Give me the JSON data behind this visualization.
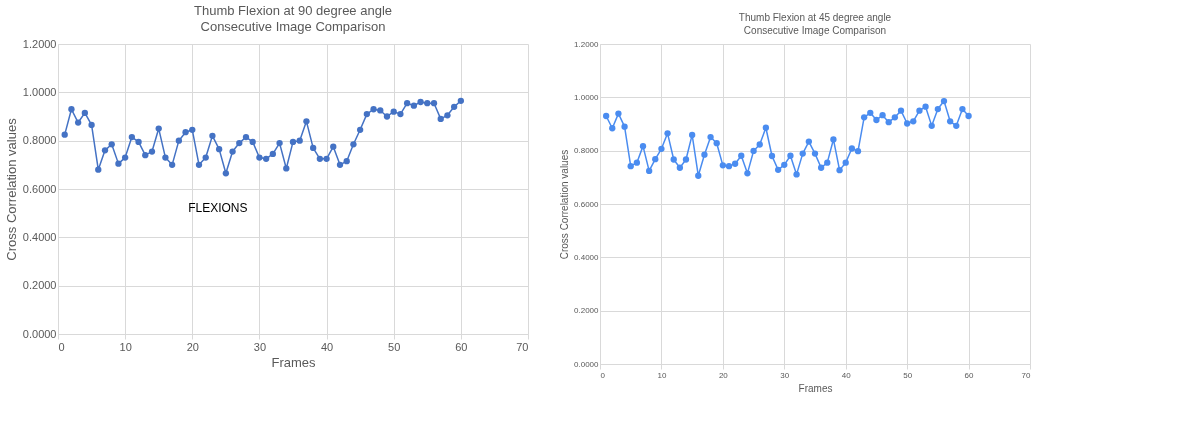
{
  "chart_data": [
    {
      "type": "line",
      "title": "Thumb Flexion at 90 degree angle",
      "subtitle": "Consecutive Image Comparison",
      "xlabel": "Frames",
      "ylabel": "Cross Correlation values",
      "x": [
        1,
        2,
        3,
        4,
        5,
        6,
        7,
        8,
        9,
        10,
        11,
        12,
        13,
        14,
        15,
        16,
        17,
        18,
        19,
        20,
        21,
        22,
        23,
        24,
        25,
        26,
        27,
        28,
        29,
        30,
        31,
        32,
        33,
        34,
        35,
        36,
        37,
        38,
        39,
        40,
        41,
        42,
        43,
        44,
        45,
        46,
        47,
        48,
        49,
        50,
        51,
        52,
        53,
        54,
        55,
        56,
        57,
        58,
        59,
        60
      ],
      "series": [
        {
          "color": "#4472c4",
          "values": [
            0.825,
            0.93,
            0.875,
            0.915,
            0.865,
            0.68,
            0.76,
            0.785,
            0.705,
            0.73,
            0.815,
            0.795,
            0.74,
            0.755,
            0.85,
            0.73,
            0.7,
            0.8,
            0.835,
            0.845,
            0.7,
            0.73,
            0.82,
            0.765,
            0.665,
            0.755,
            0.79,
            0.815,
            0.795,
            0.73,
            0.725,
            0.745,
            0.79,
            0.685,
            0.795,
            0.8,
            0.88,
            0.77,
            0.725,
            0.725,
            0.775,
            0.7,
            0.715,
            0.785,
            0.845,
            0.91,
            0.93,
            0.925,
            0.9,
            0.92,
            0.91,
            0.955,
            0.945,
            0.96,
            0.955,
            0.955,
            0.89,
            0.905,
            0.94,
            0.965
          ]
        }
      ],
      "annotations": [
        "FLEXIONS"
      ],
      "xlim": [
        0,
        70
      ],
      "xticks": [
        0,
        10,
        20,
        30,
        40,
        50,
        60,
        70
      ],
      "ylim": [
        0,
        1.2
      ],
      "yticks": [
        {
          "value": 0,
          "label": "0.0000"
        },
        {
          "value": 0.2,
          "label": "0.2000"
        },
        {
          "value": 0.4,
          "label": "0.4000"
        },
        {
          "value": 0.6,
          "label": "0.6000"
        },
        {
          "value": 0.8,
          "label": "0.8000"
        },
        {
          "value": 1.0,
          "label": "1.0000"
        },
        {
          "value": 1.2,
          "label": "1.2000"
        }
      ],
      "grid": true,
      "marker": "circle",
      "line_style": "solid"
    },
    {
      "type": "line",
      "title": "Thumb Flexion at 45 degree angle",
      "subtitle": "Consecutive Image Comparison",
      "xlabel": "Frames",
      "ylabel": "Cross Correlation values",
      "x": [
        1,
        2,
        3,
        4,
        5,
        6,
        7,
        8,
        9,
        10,
        11,
        12,
        13,
        14,
        15,
        16,
        17,
        18,
        19,
        20,
        21,
        22,
        23,
        24,
        25,
        26,
        27,
        28,
        29,
        30,
        31,
        32,
        33,
        34,
        35,
        36,
        37,
        38,
        39,
        40,
        41,
        42,
        43,
        44,
        45,
        46,
        47,
        48,
        49,
        50,
        51,
        52,
        53,
        54,
        55,
        56,
        57,
        58,
        59,
        60
      ],
      "series": [
        {
          "color": "#4a8cf0",
          "values": [
            0.93,
            0.884,
            0.939,
            0.89,
            0.742,
            0.755,
            0.817,
            0.724,
            0.768,
            0.807,
            0.865,
            0.767,
            0.736,
            0.767,
            0.859,
            0.706,
            0.785,
            0.851,
            0.828,
            0.745,
            0.742,
            0.751,
            0.781,
            0.715,
            0.799,
            0.823,
            0.886,
            0.78,
            0.728,
            0.747,
            0.781,
            0.711,
            0.789,
            0.834,
            0.789,
            0.736,
            0.755,
            0.842,
            0.727,
            0.755,
            0.808,
            0.798,
            0.925,
            0.942,
            0.915,
            0.933,
            0.907,
            0.925,
            0.95,
            0.902,
            0.91,
            0.95,
            0.965,
            0.893,
            0.956,
            0.986,
            0.91,
            0.893,
            0.956,
            0.93
          ]
        }
      ],
      "xlim": [
        0,
        70
      ],
      "xticks": [
        0,
        10,
        20,
        30,
        40,
        50,
        60,
        70
      ],
      "ylim": [
        0,
        1.2
      ],
      "yticks": [
        {
          "value": 0,
          "label": "0.0000"
        },
        {
          "value": 0.2,
          "label": "0.2000"
        },
        {
          "value": 0.4,
          "label": "0.4000"
        },
        {
          "value": 0.6,
          "label": "0.6000"
        },
        {
          "value": 0.8,
          "label": "0.8000"
        },
        {
          "value": 1.0,
          "label": "1.0000"
        },
        {
          "value": 1.2,
          "label": "1.2000"
        }
      ],
      "grid": true,
      "marker": "circle",
      "line_style": "solid"
    }
  ]
}
